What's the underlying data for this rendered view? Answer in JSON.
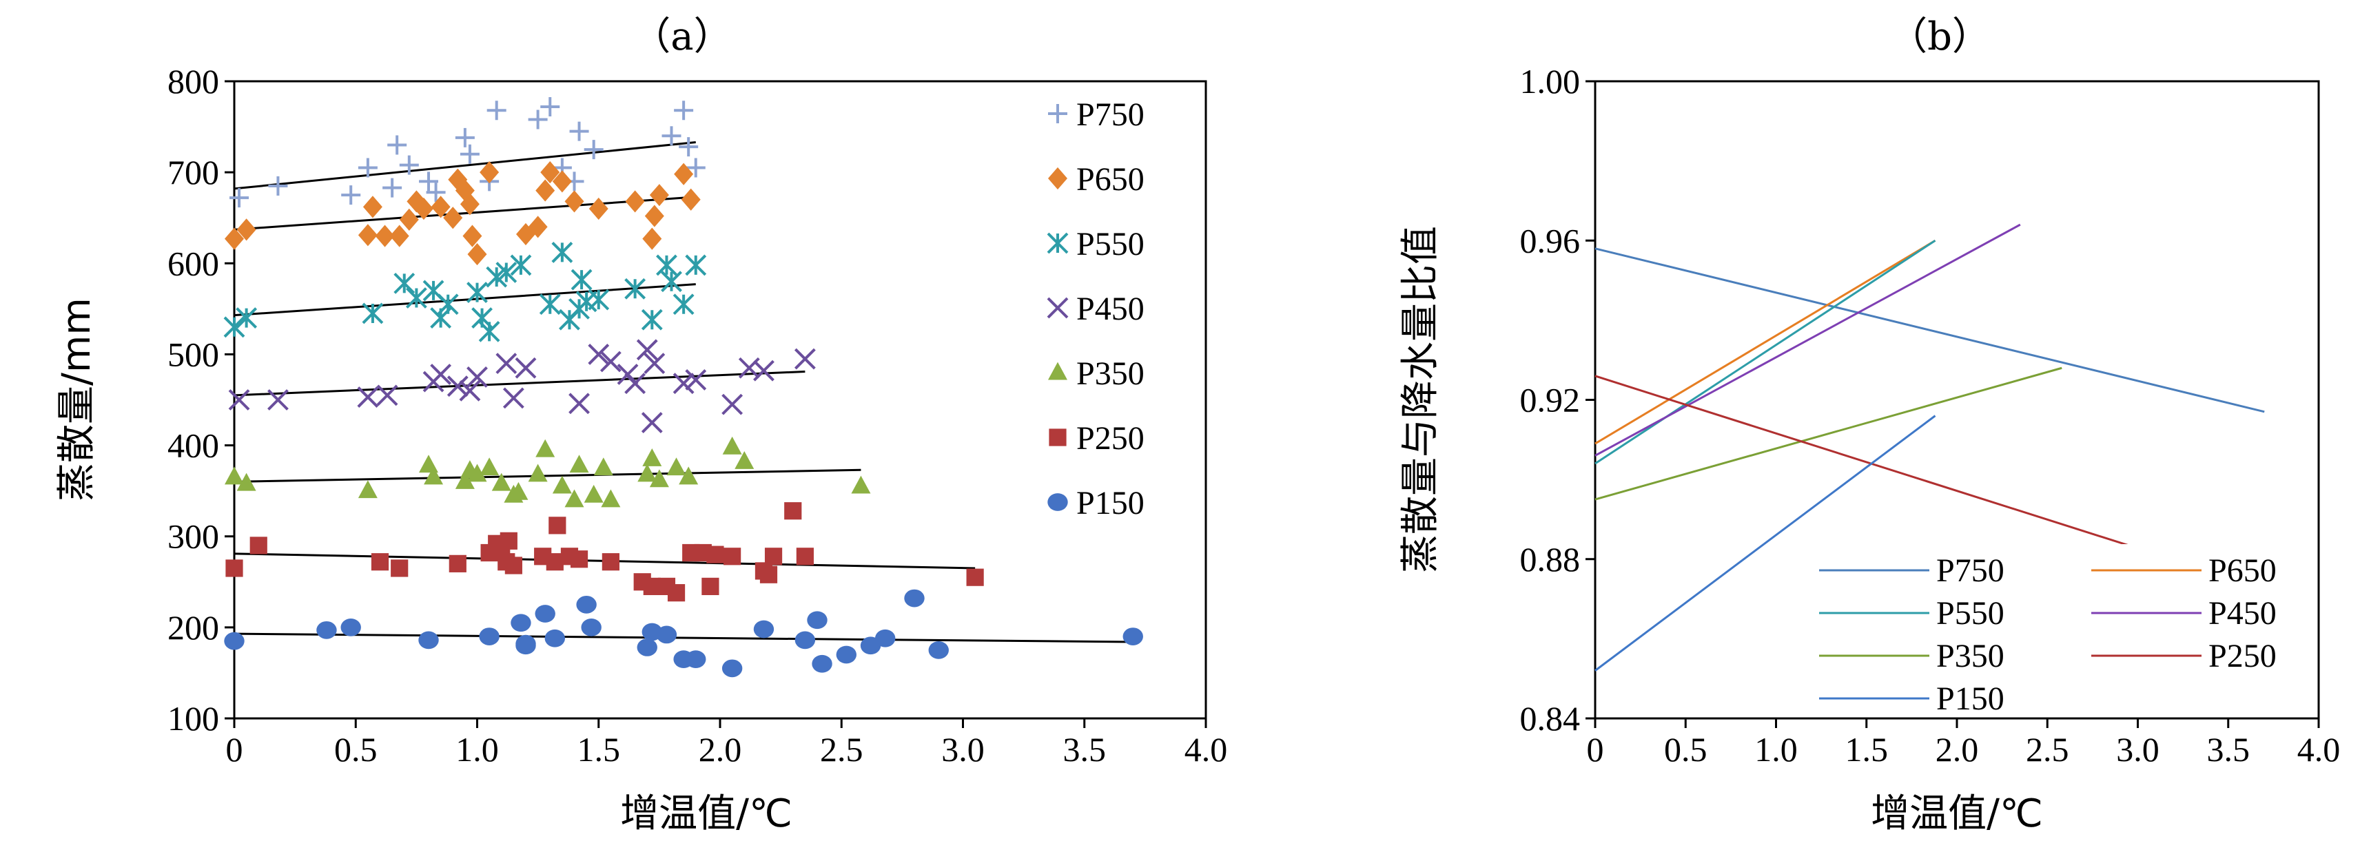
{
  "chart_data": [
    {
      "type": "scatter",
      "panel_label": "（a）",
      "xlabel": "增温值/℃",
      "ylabel": "蒸散量/mm",
      "xlim": [
        0,
        4.0
      ],
      "ylim": [
        100,
        800
      ],
      "xticks": [
        "0",
        "0.5",
        "1.0",
        "1.5",
        "2.0",
        "2.5",
        "3.0",
        "3.5",
        "4.0"
      ],
      "yticks": [
        "100",
        "200",
        "300",
        "400",
        "500",
        "600",
        "700",
        "800"
      ],
      "legend_position": "right",
      "series": [
        {
          "name": "P750",
          "color": "#8DA3D2",
          "marker": "plus",
          "points": [
            [
              0.02,
              672
            ],
            [
              0.18,
              685
            ],
            [
              0.48,
              675
            ],
            [
              0.55,
              705
            ],
            [
              0.65,
              683
            ],
            [
              0.67,
              730
            ],
            [
              0.72,
              708
            ],
            [
              0.8,
              690
            ],
            [
              0.83,
              678
            ],
            [
              0.95,
              738
            ],
            [
              0.97,
              720
            ],
            [
              1.05,
              690
            ],
            [
              1.08,
              768
            ],
            [
              1.25,
              758
            ],
            [
              1.3,
              772
            ],
            [
              1.35,
              705
            ],
            [
              1.4,
              690
            ],
            [
              1.42,
              745
            ],
            [
              1.48,
              725
            ],
            [
              1.8,
              740
            ],
            [
              1.85,
              768
            ],
            [
              1.87,
              728
            ],
            [
              1.9,
              705
            ]
          ],
          "trend": [
            [
              0,
              682
            ],
            [
              1.9,
              733
            ]
          ]
        },
        {
          "name": "P650",
          "color": "#E3822F",
          "marker": "diamond",
          "points": [
            [
              0.0,
              627
            ],
            [
              0.05,
              637
            ],
            [
              0.55,
              631
            ],
            [
              0.57,
              662
            ],
            [
              0.62,
              630
            ],
            [
              0.68,
              630
            ],
            [
              0.72,
              648
            ],
            [
              0.75,
              668
            ],
            [
              0.78,
              660
            ],
            [
              0.85,
              662
            ],
            [
              0.9,
              650
            ],
            [
              0.92,
              692
            ],
            [
              0.95,
              680
            ],
            [
              0.97,
              665
            ],
            [
              0.98,
              630
            ],
            [
              1.0,
              610
            ],
            [
              1.05,
              700
            ],
            [
              1.2,
              632
            ],
            [
              1.25,
              640
            ],
            [
              1.28,
              680
            ],
            [
              1.3,
              700
            ],
            [
              1.35,
              690
            ],
            [
              1.4,
              668
            ],
            [
              1.5,
              660
            ],
            [
              1.65,
              668
            ],
            [
              1.72,
              627
            ],
            [
              1.73,
              652
            ],
            [
              1.75,
              675
            ],
            [
              1.85,
              698
            ],
            [
              1.88,
              670
            ]
          ],
          "trend": [
            [
              0,
              637
            ],
            [
              1.9,
              673
            ]
          ]
        },
        {
          "name": "P550",
          "color": "#2D9DA8",
          "marker": "asterisk",
          "points": [
            [
              0.0,
              530
            ],
            [
              0.05,
              540
            ],
            [
              0.57,
              545
            ],
            [
              0.7,
              578
            ],
            [
              0.75,
              562
            ],
            [
              0.82,
              570
            ],
            [
              0.85,
              540
            ],
            [
              0.88,
              555
            ],
            [
              1.0,
              568
            ],
            [
              1.02,
              540
            ],
            [
              1.05,
              525
            ],
            [
              1.08,
              585
            ],
            [
              1.12,
              590
            ],
            [
              1.18,
              598
            ],
            [
              1.3,
              555
            ],
            [
              1.35,
              612
            ],
            [
              1.38,
              538
            ],
            [
              1.42,
              550
            ],
            [
              1.43,
              582
            ],
            [
              1.45,
              558
            ],
            [
              1.5,
              560
            ],
            [
              1.65,
              572
            ],
            [
              1.72,
              538
            ],
            [
              1.78,
              598
            ],
            [
              1.8,
              580
            ],
            [
              1.85,
              555
            ],
            [
              1.9,
              598
            ]
          ],
          "trend": [
            [
              0,
              543
            ],
            [
              1.9,
              577
            ]
          ]
        },
        {
          "name": "P450",
          "color": "#6A4E9C",
          "marker": "x",
          "points": [
            [
              0.02,
              450
            ],
            [
              0.18,
              450
            ],
            [
              0.55,
              453
            ],
            [
              0.63,
              455
            ],
            [
              0.82,
              470
            ],
            [
              0.85,
              478
            ],
            [
              0.92,
              465
            ],
            [
              0.97,
              460
            ],
            [
              1.0,
              475
            ],
            [
              1.12,
              490
            ],
            [
              1.15,
              452
            ],
            [
              1.2,
              485
            ],
            [
              1.42,
              446
            ],
            [
              1.5,
              500
            ],
            [
              1.55,
              492
            ],
            [
              1.62,
              478
            ],
            [
              1.65,
              468
            ],
            [
              1.7,
              505
            ],
            [
              1.72,
              425
            ],
            [
              1.73,
              490
            ],
            [
              1.85,
              468
            ],
            [
              1.9,
              472
            ],
            [
              2.05,
              445
            ],
            [
              2.12,
              485
            ],
            [
              2.18,
              482
            ],
            [
              2.35,
              495
            ]
          ],
          "trend": [
            [
              0,
              455
            ],
            [
              2.35,
              481
            ]
          ]
        },
        {
          "name": "P350",
          "color": "#8CB043",
          "marker": "triangle",
          "points": [
            [
              0.0,
              365
            ],
            [
              0.05,
              358
            ],
            [
              0.55,
              350
            ],
            [
              0.8,
              378
            ],
            [
              0.82,
              365
            ],
            [
              0.95,
              360
            ],
            [
              0.97,
              372
            ],
            [
              1.0,
              368
            ],
            [
              1.05,
              375
            ],
            [
              1.1,
              358
            ],
            [
              1.15,
              345
            ],
            [
              1.17,
              348
            ],
            [
              1.25,
              368
            ],
            [
              1.28,
              395
            ],
            [
              1.35,
              355
            ],
            [
              1.4,
              340
            ],
            [
              1.42,
              378
            ],
            [
              1.48,
              345
            ],
            [
              1.52,
              375
            ],
            [
              1.55,
              340
            ],
            [
              1.7,
              368
            ],
            [
              1.72,
              385
            ],
            [
              1.75,
              362
            ],
            [
              1.82,
              375
            ],
            [
              1.87,
              365
            ],
            [
              2.05,
              398
            ],
            [
              2.1,
              382
            ],
            [
              2.58,
              355
            ]
          ],
          "trend": [
            [
              0,
              360
            ],
            [
              2.58,
              373
            ]
          ]
        },
        {
          "name": "P250",
          "color": "#B23A3A",
          "marker": "square",
          "points": [
            [
              0.0,
              265
            ],
            [
              0.1,
              290
            ],
            [
              0.6,
              272
            ],
            [
              0.68,
              265
            ],
            [
              0.92,
              270
            ],
            [
              1.05,
              282
            ],
            [
              1.08,
              292
            ],
            [
              1.1,
              285
            ],
            [
              1.12,
              272
            ],
            [
              1.13,
              295
            ],
            [
              1.15,
              268
            ],
            [
              1.27,
              278
            ],
            [
              1.32,
              272
            ],
            [
              1.33,
              312
            ],
            [
              1.38,
              278
            ],
            [
              1.42,
              275
            ],
            [
              1.55,
              272
            ],
            [
              1.68,
              250
            ],
            [
              1.72,
              245
            ],
            [
              1.78,
              245
            ],
            [
              1.82,
              238
            ],
            [
              1.88,
              282
            ],
            [
              1.93,
              282
            ],
            [
              1.96,
              245
            ],
            [
              1.98,
              280
            ],
            [
              2.05,
              278
            ],
            [
              2.18,
              262
            ],
            [
              2.2,
              258
            ],
            [
              2.22,
              278
            ],
            [
              2.3,
              328
            ],
            [
              2.35,
              278
            ],
            [
              3.05,
              255
            ]
          ],
          "trend": [
            [
              0,
              281
            ],
            [
              3.05,
              265
            ]
          ]
        },
        {
          "name": "P150",
          "color": "#4472C4",
          "marker": "circle",
          "points": [
            [
              0.0,
              185
            ],
            [
              0.38,
              197
            ],
            [
              0.48,
              200
            ],
            [
              0.8,
              186
            ],
            [
              1.05,
              190
            ],
            [
              1.18,
              205
            ],
            [
              1.2,
              182
            ],
            [
              1.2,
              180
            ],
            [
              1.28,
              215
            ],
            [
              1.32,
              188
            ],
            [
              1.45,
              225
            ],
            [
              1.47,
              200
            ],
            [
              1.7,
              178
            ],
            [
              1.72,
              195
            ],
            [
              1.78,
              192
            ],
            [
              1.85,
              165
            ],
            [
              1.9,
              165
            ],
            [
              2.05,
              155
            ],
            [
              2.18,
              198
            ],
            [
              2.35,
              186
            ],
            [
              2.4,
              208
            ],
            [
              2.42,
              160
            ],
            [
              2.52,
              170
            ],
            [
              2.62,
              180
            ],
            [
              2.68,
              188
            ],
            [
              2.8,
              232
            ],
            [
              2.9,
              175
            ],
            [
              3.7,
              190
            ]
          ],
          "trend": [
            [
              0,
              193
            ],
            [
              3.7,
              184
            ]
          ]
        }
      ]
    },
    {
      "type": "line",
      "panel_label": "（b）",
      "xlabel": "增温值/℃",
      "ylabel": "蒸散量与降水量比值",
      "xlim": [
        0,
        4.0
      ],
      "ylim": [
        0.84,
        1.0
      ],
      "xticks": [
        "0",
        "0.5",
        "1.0",
        "1.5",
        "2.0",
        "2.5",
        "3.0",
        "3.5",
        "4.0"
      ],
      "yticks": [
        "0.84",
        "0.88",
        "0.92",
        "0.96",
        "1.00"
      ],
      "legend_position": "bottom-right",
      "series": [
        {
          "name": "P750",
          "color": "#4A7EBB",
          "x": [
            0,
            3.7
          ],
          "y": [
            0.958,
            0.917
          ]
        },
        {
          "name": "P650",
          "color": "#E67E22",
          "x": [
            0,
            1.88
          ],
          "y": [
            0.909,
            0.96
          ]
        },
        {
          "name": "P550",
          "color": "#2D9DA8",
          "x": [
            0,
            1.88
          ],
          "y": [
            0.904,
            0.96
          ]
        },
        {
          "name": "P450",
          "color": "#7E3FB3",
          "x": [
            0,
            2.35
          ],
          "y": [
            0.906,
            0.964
          ]
        },
        {
          "name": "P350",
          "color": "#7BA035",
          "x": [
            0,
            2.58
          ],
          "y": [
            0.895,
            0.928
          ]
        },
        {
          "name": "P250",
          "color": "#B03030",
          "x": [
            0,
            3.05
          ],
          "y": [
            0.926,
            0.882
          ]
        },
        {
          "name": "P150",
          "color": "#3F78C8",
          "x": [
            0,
            1.88
          ],
          "y": [
            0.852,
            0.916
          ]
        }
      ],
      "legend_order": [
        "P750",
        "P650",
        "P550",
        "P450",
        "P350",
        "P250",
        "P150"
      ]
    }
  ]
}
